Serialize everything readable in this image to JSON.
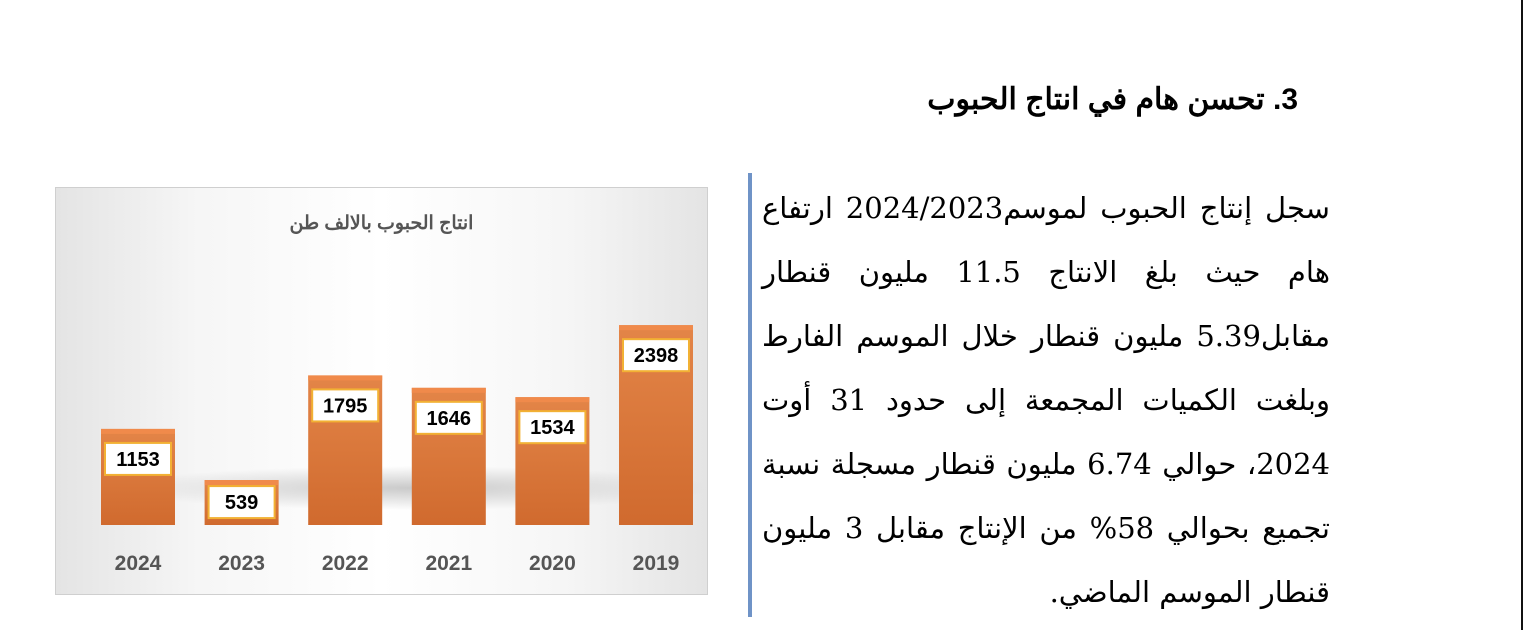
{
  "section": {
    "heading": "3. تحسن هام في انتاج الحبوب",
    "paragraph": "سجل إنتاج الحبوب لموسم2024/2023 ارتفاع هام حيث بلغ الانتاج 11.5 مليون قنطار مقابل5.39 مليون قنطار خلال الموسم الفارط وبلغت الكميات المجمعة إلى حدود 31 أوت 2024، حوالي 6.74 مليون قنطار مسجلة نسبة تجميع بحوالي 58% من الإنتاج مقابل 3 مليون قنطار الموسم الماضي."
  },
  "colors": {
    "bar_fill": "#d9733a",
    "bar_top": "#f08a4b",
    "label_border": "#f2b134",
    "quote_bar": "#6f93c7"
  },
  "chart_data": {
    "type": "bar",
    "title": "انتاج الحبوب بالالف طن",
    "categories": [
      "2024",
      "2023",
      "2022",
      "2021",
      "2020",
      "2019"
    ],
    "values": [
      1153,
      539,
      1795,
      1646,
      1534,
      2398
    ],
    "ylim": [
      0,
      2700
    ],
    "grid": false,
    "legend": "none",
    "data_labels": true
  }
}
